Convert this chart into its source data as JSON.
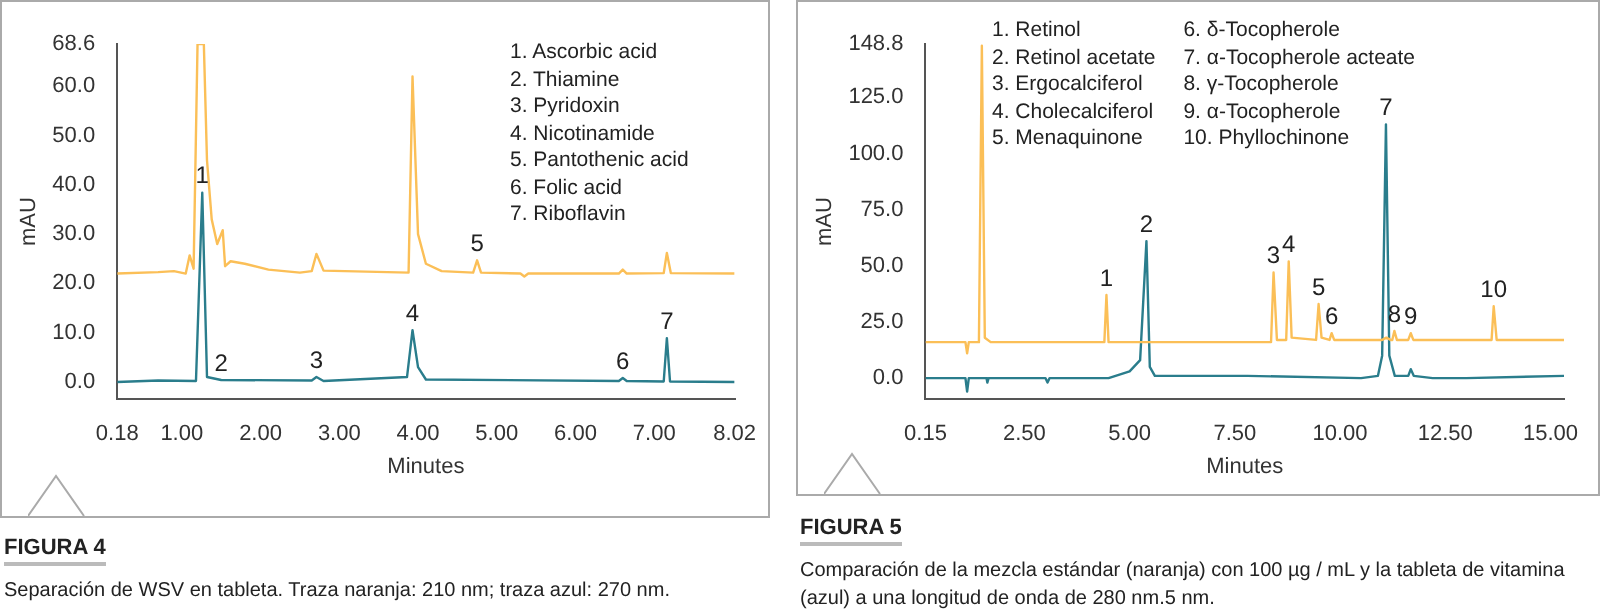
{
  "chart_data": [
    {
      "type": "line",
      "title": "FIGURA 4",
      "subtitle": "Separación de WSV en tableta. Traza naranja: 210 nm; traza azul: 270 nm.",
      "xlabel": "Minutes",
      "ylabel": "mAU",
      "xlim": [
        0.18,
        8.02
      ],
      "xticks": [
        {
          "value": 0.18,
          "label": "0.18"
        },
        {
          "value": 1,
          "label": "1.00"
        },
        {
          "value": 2,
          "label": "2.00"
        },
        {
          "value": 3,
          "label": "3.00"
        },
        {
          "value": 4,
          "label": "4.00"
        },
        {
          "value": 5,
          "label": "5.00"
        },
        {
          "value": 6,
          "label": "6.00"
        },
        {
          "value": 7,
          "label": "7.00"
        },
        {
          "value": 8.02,
          "label": "8.02"
        }
      ],
      "ylim": [
        -3.5,
        68.6
      ],
      "yticks": [
        {
          "value": 0,
          "label": "0.0"
        },
        {
          "value": 10,
          "label": "10.0"
        },
        {
          "value": 20,
          "label": "20.0"
        },
        {
          "value": 30,
          "label": "30.0"
        },
        {
          "value": 40,
          "label": "40.0"
        },
        {
          "value": 50,
          "label": "50.0"
        },
        {
          "value": 60,
          "label": "60.0"
        },
        {
          "value": 68.6,
          "label": "68.6"
        }
      ],
      "series": [
        {
          "color": "#fbbf57",
          "x": [
            0.18,
            0.7,
            0.9,
            1.05,
            1.1,
            1.15,
            1.2,
            1.28,
            1.32,
            1.38,
            1.45,
            1.52,
            1.55,
            1.62,
            1.8,
            2.1,
            2.5,
            2.65,
            2.71,
            2.8,
            3.88,
            3.93,
            4.0,
            4.1,
            4.3,
            4.7,
            4.75,
            4.8,
            5.3,
            5.35,
            5.4,
            6.55,
            6.6,
            6.65,
            7.12,
            7.16,
            7.21,
            8.02
          ],
          "values": [
            22,
            22.3,
            22.5,
            22,
            25.7,
            23,
            68.6,
            68.6,
            45,
            33,
            28,
            30.8,
            23.5,
            24.5,
            24,
            22.8,
            22.2,
            22.5,
            26,
            22.6,
            22.2,
            62,
            30,
            24,
            22.5,
            22.2,
            24.7,
            22.2,
            22,
            21.4,
            22,
            22,
            22.8,
            22,
            22.1,
            26.2,
            22.1,
            22
          ]
        },
        {
          "color": "#2a7d8c",
          "x": [
            0.18,
            0.7,
            1.18,
            1.26,
            1.32,
            1.5,
            2.65,
            2.71,
            2.8,
            3.86,
            3.93,
            4.0,
            4.1,
            6.55,
            6.6,
            6.65,
            7.12,
            7.16,
            7.2,
            8.02
          ],
          "values": [
            0,
            0.3,
            0.2,
            38.4,
            1,
            0.4,
            0.3,
            1,
            0.2,
            1,
            10.5,
            3,
            0.5,
            0.2,
            0.8,
            0.2,
            0.1,
            8.9,
            0.1,
            0
          ]
        }
      ],
      "annotations": [
        "1. Ascorbic acid",
        "2. Thiamine",
        "3. Pyridoxin",
        "4. Nicotinamide",
        "5. Pantothenic acid",
        "6. Folic acid",
        "7. Riboflavin",
        {
          "text": "1",
          "x": 1.26,
          "y": 38.4
        },
        {
          "text": "2",
          "x": 1.5,
          "y": 0.4
        },
        {
          "text": "3",
          "x": 2.71,
          "y": 1
        },
        {
          "text": "4",
          "x": 3.93,
          "y": 10.5
        },
        {
          "text": "5",
          "x": 4.75,
          "y": 24.7
        },
        {
          "text": "6",
          "x": 6.6,
          "y": 0.8
        },
        {
          "text": "7",
          "x": 7.16,
          "y": 8.9
        }
      ]
    },
    {
      "type": "line",
      "title": "FIGURA 5",
      "subtitle": "Comparación de la mezcla estándar (naranja) con 100 µg / mL y la tableta de vitamina (azul) a una longitud de onda de 280 nm.5 nm.",
      "xlabel": "Minutes",
      "ylabel": "mAU",
      "xlim": [
        0.15,
        15.32
      ],
      "xticks": [
        {
          "value": 0.15,
          "label": "0.15"
        },
        {
          "value": 2.5,
          "label": "2.50"
        },
        {
          "value": 5,
          "label": "5.00"
        },
        {
          "value": 7.5,
          "label": "7.50"
        },
        {
          "value": 10,
          "label": "10.00"
        },
        {
          "value": 12.5,
          "label": "12.50"
        },
        {
          "value": 15,
          "label": "15.00"
        }
      ],
      "ylim": [
        -9.4,
        148.8
      ],
      "yticks": [
        {
          "value": 0,
          "label": "0.0"
        },
        {
          "value": 25,
          "label": "25.0"
        },
        {
          "value": 50,
          "label": "50.0"
        },
        {
          "value": 75,
          "label": "75.0"
        },
        {
          "value": 100,
          "label": "100.0"
        },
        {
          "value": 125,
          "label": "125.0"
        },
        {
          "value": 148.8,
          "label": "148.8"
        }
      ],
      "series": [
        {
          "color": "#fbbf57",
          "x": [
            0.15,
            1.1,
            1.14,
            1.18,
            1.42,
            1.49,
            1.56,
            1.7,
            4.4,
            4.45,
            4.5,
            8.36,
            8.42,
            8.5,
            8.72,
            8.78,
            8.85,
            9.43,
            9.49,
            9.56,
            9.75,
            9.8,
            9.86,
            11.0,
            11.1,
            11.2,
            11.24,
            11.29,
            11.35,
            11.62,
            11.68,
            11.74,
            13.6,
            13.65,
            13.72,
            15.32
          ],
          "values": [
            16,
            16,
            11,
            16,
            16,
            148,
            18,
            16,
            16,
            37,
            16,
            16,
            47,
            17,
            17,
            52,
            18,
            17,
            33,
            18,
            17,
            20,
            17,
            17,
            18,
            17,
            17,
            21,
            17,
            17,
            20,
            17,
            17,
            32,
            17,
            17
          ]
        },
        {
          "color": "#2a7d8c",
          "x": [
            0.15,
            1.1,
            1.14,
            1.18,
            1.6,
            1.62,
            1.65,
            3.0,
            3.05,
            3.1,
            4.5,
            5.0,
            5.25,
            5.4,
            5.48,
            5.6,
            7.8,
            10.5,
            10.9,
            11.0,
            11.09,
            11.17,
            11.3,
            11.62,
            11.68,
            11.75,
            12.2,
            13,
            15.32
          ],
          "values": [
            0,
            0,
            -6,
            0,
            0,
            -2,
            0,
            0,
            -2,
            0,
            0,
            3,
            8,
            61,
            5,
            1,
            1,
            0,
            1,
            10,
            113,
            10,
            1,
            1,
            4,
            1,
            0,
            0,
            1
          ]
        }
      ],
      "annotations": [
        "1. Retinol",
        "2. Retinol acetate",
        "3. Ergocalciferol",
        "4. Cholecalciferol",
        "5. Menaquinone",
        "6. δ-Tocopherole",
        "7. α-Tocopherole acteate",
        "8. γ-Tocopherole",
        "9. α-Tocopherole",
        "10. Phyllochinone",
        {
          "text": "1",
          "x": 4.45,
          "y": 37
        },
        {
          "text": "2",
          "x": 5.4,
          "y": 61
        },
        {
          "text": "3",
          "x": 8.42,
          "y": 47
        },
        {
          "text": "4",
          "x": 8.78,
          "y": 52
        },
        {
          "text": "5",
          "x": 9.49,
          "y": 33
        },
        {
          "text": "6",
          "x": 9.8,
          "y": 20
        },
        {
          "text": "7",
          "x": 11.09,
          "y": 113
        },
        {
          "text": "8",
          "x": 11.29,
          "y": 21
        },
        {
          "text": "9",
          "x": 11.68,
          "y": 20
        },
        {
          "text": "10",
          "x": 13.65,
          "y": 32
        }
      ]
    }
  ]
}
